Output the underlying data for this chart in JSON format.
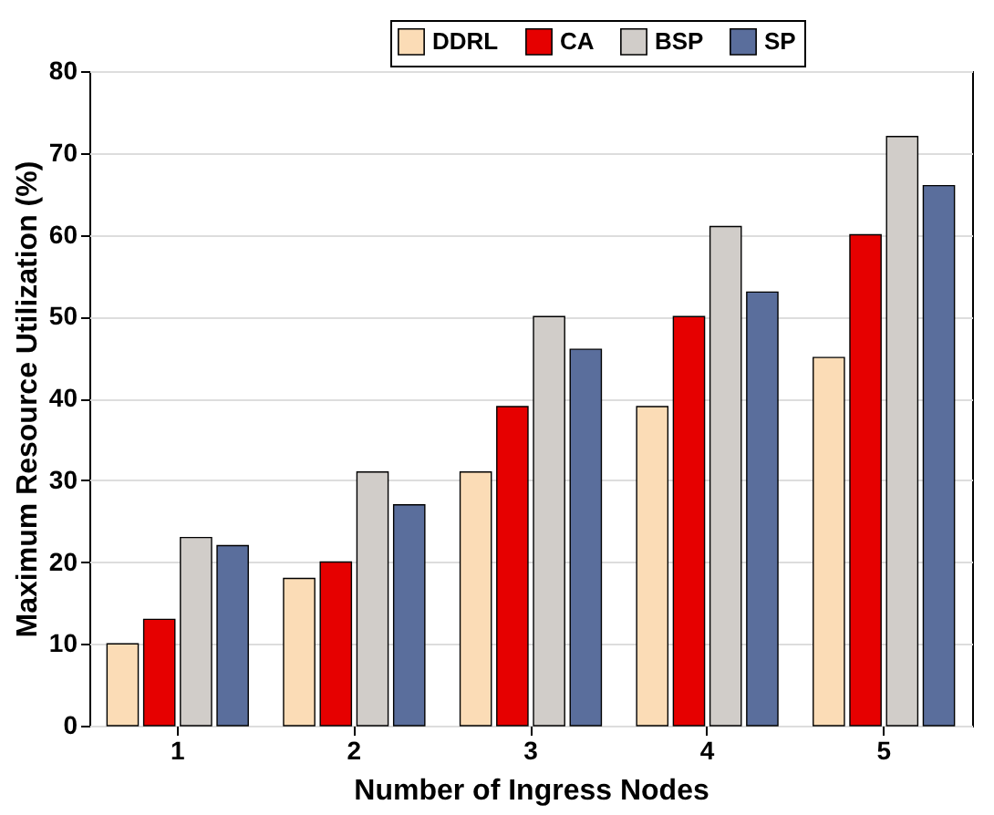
{
  "chart_data": {
    "type": "bar",
    "xlabel": "Number of Ingress Nodes",
    "ylabel": "Maximum Resource Utilization (%)",
    "categories": [
      "1",
      "2",
      "3",
      "4",
      "5"
    ],
    "series": [
      {
        "name": "DDRL",
        "color": "#fbdcb6",
        "values": [
          10,
          18,
          31,
          39,
          45
        ]
      },
      {
        "name": "CA",
        "color": "#e60000",
        "values": [
          13,
          20,
          39,
          50,
          60
        ]
      },
      {
        "name": "BSP",
        "color": "#d1cdc9",
        "values": [
          23,
          31,
          50,
          61,
          72
        ]
      },
      {
        "name": "SP",
        "color": "#5a6e9c",
        "values": [
          22,
          27,
          46,
          53,
          66
        ]
      }
    ],
    "ylim": [
      0,
      80
    ],
    "yticks": [
      0,
      10,
      20,
      30,
      40,
      50,
      60,
      70,
      80
    ],
    "grid": "y",
    "legend": "top right"
  }
}
